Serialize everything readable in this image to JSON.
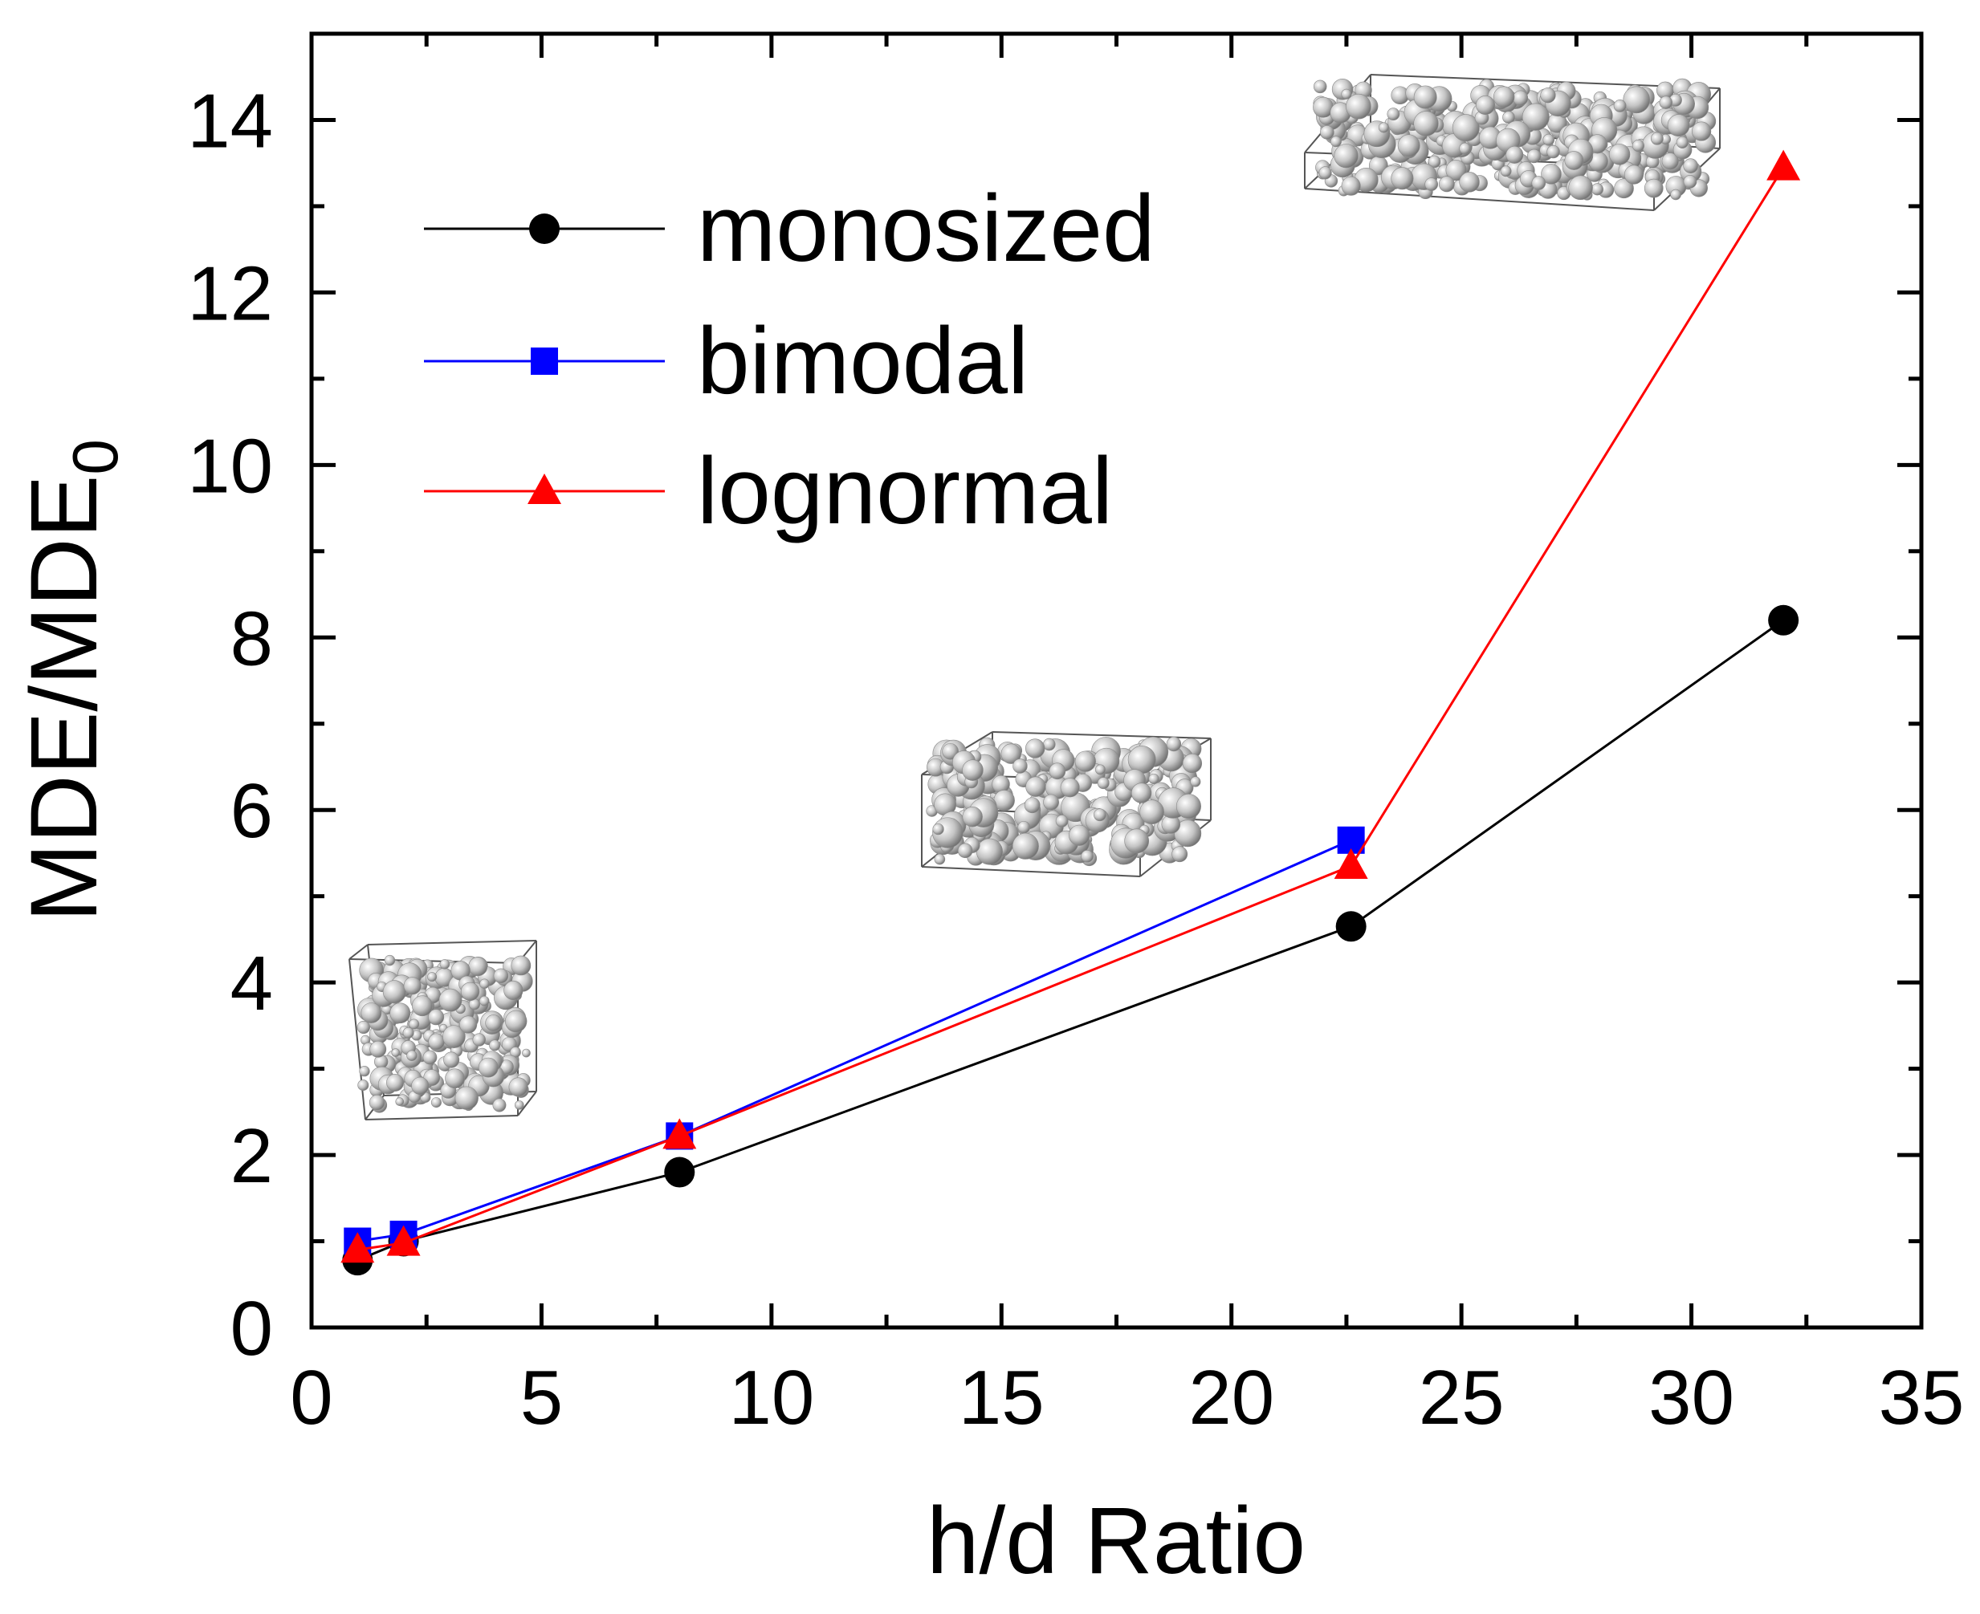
{
  "chart_data": {
    "type": "line",
    "title": "",
    "xlabel": "h/d Ratio",
    "ylabel_main": "MDE/MDE",
    "ylabel_sub": "0",
    "xlim": [
      0,
      35
    ],
    "ylim": [
      0,
      15
    ],
    "x_ticks": [
      0,
      5,
      10,
      15,
      20,
      25,
      30,
      35
    ],
    "y_ticks": [
      0,
      2,
      4,
      6,
      8,
      10,
      12,
      14
    ],
    "grid": false,
    "legend_position": "top-left",
    "series": [
      {
        "name": "monosized",
        "color": "#000000",
        "marker": "circle",
        "x": [
          1,
          2,
          8,
          22.6,
          32
        ],
        "y": [
          0.78,
          1.0,
          1.8,
          4.65,
          8.2
        ]
      },
      {
        "name": "bimodal",
        "color": "#0000ff",
        "marker": "square",
        "x": [
          1,
          2,
          8,
          22.6
        ],
        "y": [
          1.0,
          1.08,
          2.22,
          5.65
        ]
      },
      {
        "name": "lognormal",
        "color": "#ff0000",
        "marker": "triangle",
        "x": [
          1,
          2,
          8,
          22.6,
          32
        ],
        "y": [
          0.9,
          0.98,
          2.22,
          5.35,
          13.45
        ]
      }
    ],
    "insets": [
      {
        "name": "cube-packing-inset",
        "shape": "cube"
      },
      {
        "name": "slab-packing-inset",
        "shape": "slab"
      },
      {
        "name": "thin-slab-packing-inset",
        "shape": "thin-slab"
      }
    ]
  }
}
